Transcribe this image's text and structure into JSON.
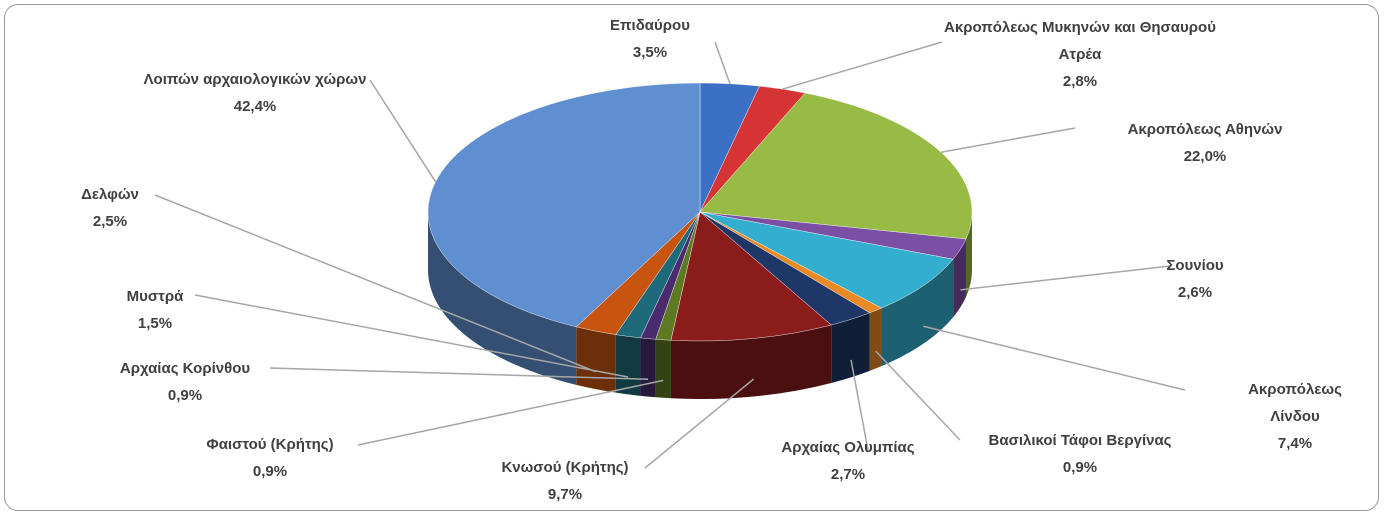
{
  "chart_data": {
    "type": "pie3d",
    "categories": [
      "Επιδαύρου",
      "Ακροπόλεως Μυκηνών και Θησαυρού Ατρέα",
      "Ακροπόλεως Αθηνών",
      "Σουνίου",
      "Ακροπόλεως Λίνδου",
      "Βασιλικοί Τάφοι Βεργίνας",
      "Αρχαίας Ολυμπίας",
      "Κνωσού (Κρήτης)",
      "Φαιστού (Κρήτης)",
      "Αρχαίας Κορίνθου",
      "Μυστρά",
      "Δελφών",
      "Λοιπών αρχαιολογικών χώρων"
    ],
    "values": [
      3.5,
      2.8,
      22.0,
      2.6,
      7.4,
      0.9,
      2.7,
      9.7,
      0.9,
      0.9,
      1.5,
      2.5,
      42.4
    ],
    "value_labels": [
      "3,5%",
      "2,8%",
      "22,0%",
      "2,6%",
      "7,4%",
      "0,9%",
      "2,7%",
      "9,7%",
      "0,9%",
      "0,9%",
      "1,5%",
      "2,5%",
      "42,4%"
    ],
    "colors": [
      "#3b70c4",
      "#d63434",
      "#98bb45",
      "#7b4fa3",
      "#33aecf",
      "#e98a25",
      "#1e3766",
      "#8b1c1c",
      "#5d7a22",
      "#4a2b6e",
      "#1f6a7a",
      "#c75510",
      "#5f8fd0"
    ]
  }
}
